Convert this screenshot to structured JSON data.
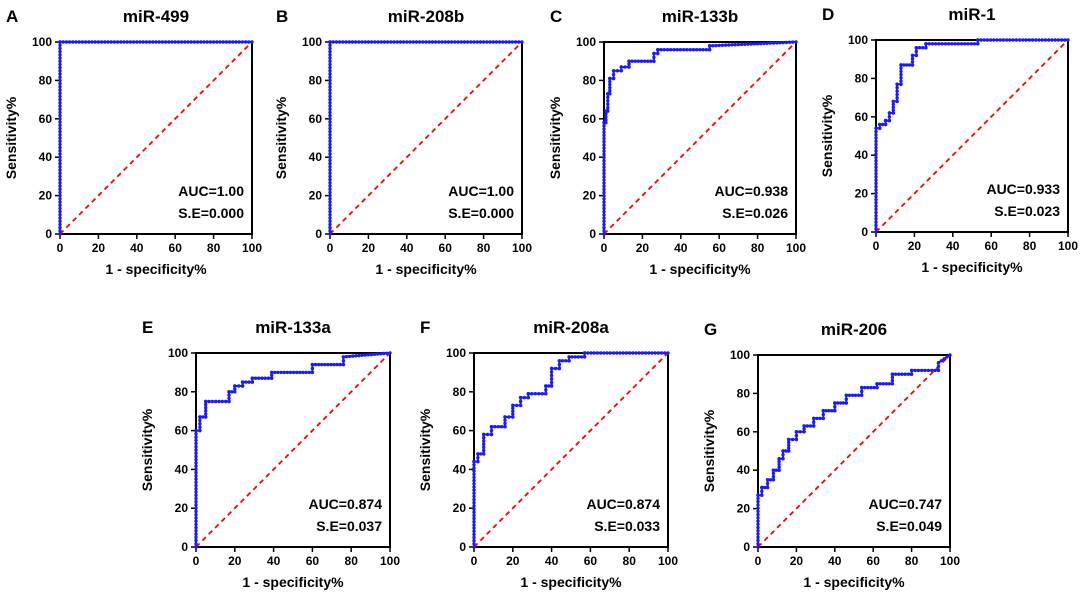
{
  "figure": {
    "xlabel": "1 - specificity%",
    "ylabel": "Sensitivity%",
    "curve_color": "#1a1aff",
    "diagonal_color": "#ff0000",
    "panels": [
      {
        "letter": "A",
        "title": "miR-499",
        "auc": "AUC=1.00",
        "se": "S.E=0.000"
      },
      {
        "letter": "B",
        "title": "miR-208b",
        "auc": "AUC=1.00",
        "se": "S.E=0.000"
      },
      {
        "letter": "C",
        "title": "miR-133b",
        "auc": "AUC=0.938",
        "se": "S.E=0.026"
      },
      {
        "letter": "D",
        "title": "miR-1",
        "auc": "AUC=0.933",
        "se": "S.E=0.023"
      },
      {
        "letter": "E",
        "title": "miR-133a",
        "auc": "AUC=0.874",
        "se": "S.E=0.037"
      },
      {
        "letter": "F",
        "title": "miR-208a",
        "auc": "AUC=0.874",
        "se": "S.E=0.033"
      },
      {
        "letter": "G",
        "title": "miR-206",
        "auc": "AUC=0.747",
        "se": "S.E=0.049"
      }
    ]
  },
  "chart_data": [
    {
      "type": "line",
      "title": "miR-499",
      "xlabel": "1 - specificity%",
      "ylabel": "Sensitivity%",
      "xlim": [
        0,
        100
      ],
      "ylim": [
        0,
        100
      ],
      "xticks": [
        0,
        20,
        40,
        60,
        80,
        100
      ],
      "yticks": [
        0,
        20,
        40,
        60,
        80,
        100
      ],
      "series": [
        {
          "name": "ROC",
          "x": [
            0,
            0,
            100
          ],
          "y": [
            0,
            100,
            100
          ]
        },
        {
          "name": "reference",
          "x": [
            0,
            100
          ],
          "y": [
            0,
            100
          ]
        }
      ]
    },
    {
      "type": "line",
      "title": "miR-208b",
      "xlabel": "1 - specificity%",
      "ylabel": "Sensitivity%",
      "xlim": [
        0,
        100
      ],
      "ylim": [
        0,
        100
      ],
      "xticks": [
        0,
        20,
        40,
        60,
        80,
        100
      ],
      "yticks": [
        0,
        20,
        40,
        60,
        80,
        100
      ],
      "series": [
        {
          "name": "ROC",
          "x": [
            0,
            0,
            100
          ],
          "y": [
            0,
            100,
            100
          ]
        },
        {
          "name": "reference",
          "x": [
            0,
            100
          ],
          "y": [
            0,
            100
          ]
        }
      ]
    },
    {
      "type": "line",
      "title": "miR-133b",
      "xlabel": "1 - specificity%",
      "ylabel": "Sensitivity%",
      "xlim": [
        0,
        100
      ],
      "ylim": [
        0,
        100
      ],
      "xticks": [
        0,
        20,
        40,
        60,
        80,
        100
      ],
      "yticks": [
        0,
        20,
        40,
        60,
        80,
        100
      ],
      "series": [
        {
          "name": "ROC",
          "x": [
            0,
            0,
            1,
            1,
            2,
            2,
            3,
            3,
            5,
            5,
            9,
            9,
            13,
            13,
            26,
            26,
            28,
            28,
            55,
            55,
            100
          ],
          "y": [
            0,
            58,
            58,
            64,
            64,
            73,
            73,
            81,
            81,
            85,
            85,
            87,
            87,
            90,
            90,
            94,
            94,
            96,
            96,
            98,
            100
          ]
        },
        {
          "name": "reference",
          "x": [
            0,
            100
          ],
          "y": [
            0,
            100
          ]
        }
      ]
    },
    {
      "type": "line",
      "title": "miR-1",
      "xlabel": "1 - specificity%",
      "ylabel": "Sensitivity%",
      "xlim": [
        0,
        100
      ],
      "ylim": [
        0,
        100
      ],
      "xticks": [
        0,
        20,
        40,
        60,
        80,
        100
      ],
      "yticks": [
        0,
        20,
        40,
        60,
        80,
        100
      ],
      "series": [
        {
          "name": "ROC",
          "x": [
            0,
            0,
            2,
            2,
            5,
            5,
            7,
            7,
            9,
            9,
            11,
            11,
            13,
            13,
            19,
            19,
            21,
            21,
            26,
            26,
            53,
            53,
            100
          ],
          "y": [
            0,
            54,
            54,
            56,
            56,
            58,
            58,
            62,
            62,
            68,
            68,
            77,
            77,
            87,
            87,
            92,
            92,
            96,
            96,
            98,
            98,
            100,
            100
          ]
        },
        {
          "name": "reference",
          "x": [
            0,
            100
          ],
          "y": [
            0,
            100
          ]
        }
      ]
    },
    {
      "type": "line",
      "title": "miR-133a",
      "xlabel": "1 - specificity%",
      "ylabel": "Sensitivity%",
      "xlim": [
        0,
        100
      ],
      "ylim": [
        0,
        100
      ],
      "xticks": [
        0,
        20,
        40,
        60,
        80,
        100
      ],
      "yticks": [
        0,
        20,
        40,
        60,
        80,
        100
      ],
      "series": [
        {
          "name": "ROC",
          "x": [
            0,
            0,
            2,
            2,
            5,
            5,
            17,
            17,
            20,
            20,
            24,
            24,
            29,
            29,
            39,
            39,
            60,
            60,
            76,
            76,
            100
          ],
          "y": [
            0,
            60,
            60,
            67,
            67,
            75,
            75,
            80,
            80,
            83,
            83,
            85,
            85,
            87,
            87,
            90,
            90,
            94,
            94,
            98,
            100
          ]
        },
        {
          "name": "reference",
          "x": [
            0,
            100
          ],
          "y": [
            0,
            100
          ]
        }
      ]
    },
    {
      "type": "line",
      "title": "miR-208a",
      "xlabel": "1 - specificity%",
      "ylabel": "Sensitivity%",
      "xlim": [
        0,
        100
      ],
      "ylim": [
        0,
        100
      ],
      "xticks": [
        0,
        20,
        40,
        60,
        80,
        100
      ],
      "yticks": [
        0,
        20,
        40,
        60,
        80,
        100
      ],
      "series": [
        {
          "name": "ROC",
          "x": [
            0,
            0,
            2,
            2,
            5,
            5,
            9,
            9,
            16,
            16,
            20,
            20,
            24,
            24,
            28,
            28,
            37,
            37,
            40,
            40,
            44,
            44,
            49,
            49,
            57,
            57,
            100
          ],
          "y": [
            0,
            44,
            44,
            48,
            48,
            58,
            58,
            62,
            62,
            67,
            67,
            73,
            73,
            77,
            77,
            79,
            79,
            83,
            83,
            92,
            92,
            96,
            96,
            98,
            98,
            100,
            100
          ]
        },
        {
          "name": "reference",
          "x": [
            0,
            100
          ],
          "y": [
            0,
            100
          ]
        }
      ]
    },
    {
      "type": "line",
      "title": "miR-206",
      "xlabel": "1 - specificity%",
      "ylabel": "Sensitivity%",
      "xlim": [
        0,
        100
      ],
      "ylim": [
        0,
        100
      ],
      "xticks": [
        0,
        20,
        40,
        60,
        80,
        100
      ],
      "yticks": [
        0,
        20,
        40,
        60,
        80,
        100
      ],
      "series": [
        {
          "name": "ROC",
          "x": [
            0,
            0,
            2,
            2,
            5,
            5,
            8,
            8,
            11,
            11,
            13,
            13,
            16,
            16,
            20,
            20,
            24,
            24,
            29,
            29,
            34,
            34,
            40,
            40,
            46,
            46,
            54,
            54,
            62,
            62,
            70,
            70,
            80,
            80,
            94,
            94,
            100
          ],
          "y": [
            0,
            27,
            27,
            31,
            31,
            35,
            35,
            40,
            40,
            46,
            46,
            50,
            50,
            56,
            56,
            60,
            60,
            63,
            63,
            67,
            67,
            71,
            71,
            75,
            75,
            79,
            79,
            83,
            83,
            85,
            85,
            90,
            90,
            92,
            92,
            96,
            100
          ]
        },
        {
          "name": "reference",
          "x": [
            0,
            100
          ],
          "y": [
            0,
            100
          ]
        }
      ]
    }
  ]
}
